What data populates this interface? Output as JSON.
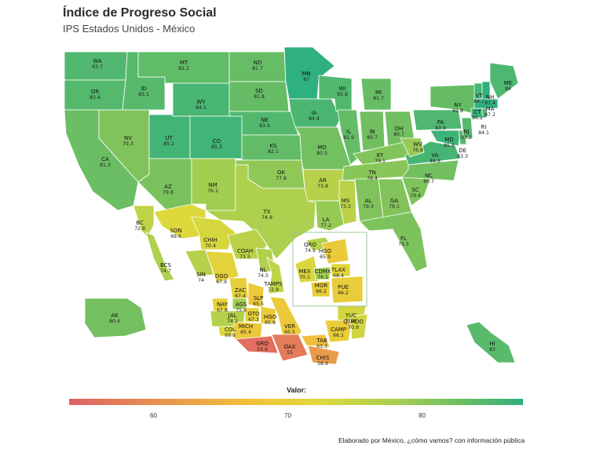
{
  "title": "Índice de Progreso Social",
  "subtitle": "IPS Estados Unidos - México",
  "legend": {
    "label": "Valor:",
    "ticks": [
      "60",
      "70",
      "80"
    ],
    "min": 52,
    "max": 87,
    "colors": [
      "#e06265",
      "#e8924e",
      "#f2c23a",
      "#ded83b",
      "#a9cf4f",
      "#6cbe62",
      "#2fb07f"
    ]
  },
  "footer": "Elaborado por México, ¿cómo vamos? con información pública",
  "regions": [
    {
      "code": "WA",
      "value": "83.7"
    },
    {
      "code": "OR",
      "value": "83.4"
    },
    {
      "code": "CA",
      "value": "81.3"
    },
    {
      "code": "ID",
      "value": "83.1"
    },
    {
      "code": "NV",
      "value": "79.3"
    },
    {
      "code": "MT",
      "value": "82.2"
    },
    {
      "code": "WY",
      "value": "84.5"
    },
    {
      "code": "UT",
      "value": "85.2"
    },
    {
      "code": "AZ",
      "value": "79.8"
    },
    {
      "code": "CO",
      "value": "85.3"
    },
    {
      "code": "NM",
      "value": "76.1"
    },
    {
      "code": "ND",
      "value": "81.7"
    },
    {
      "code": "SD",
      "value": "81.8"
    },
    {
      "code": "NE",
      "value": "83.6"
    },
    {
      "code": "KS",
      "value": "82.1"
    },
    {
      "code": "OK",
      "value": "77.8"
    },
    {
      "code": "TX",
      "value": "74.9"
    },
    {
      "code": "MN",
      "value": "87"
    },
    {
      "code": "IA",
      "value": "84.4"
    },
    {
      "code": "MO",
      "value": "80.5"
    },
    {
      "code": "AR",
      "value": "73.8"
    },
    {
      "code": "LA",
      "value": "77.2"
    },
    {
      "code": "WI",
      "value": "83.8"
    },
    {
      "code": "IL",
      "value": "81.9"
    },
    {
      "code": "MI",
      "value": "81.7"
    },
    {
      "code": "IN",
      "value": "80.7"
    },
    {
      "code": "OH",
      "value": "80.7"
    },
    {
      "code": "KY",
      "value": "79.1"
    },
    {
      "code": "TN",
      "value": "78.4"
    },
    {
      "code": "MS",
      "value": "73.3"
    },
    {
      "code": "AL",
      "value": "79.3"
    },
    {
      "code": "GA",
      "value": "79.1"
    },
    {
      "code": "FL",
      "value": "79.5"
    },
    {
      "code": "SC",
      "value": "79.4"
    },
    {
      "code": "NC",
      "value": "80.7"
    },
    {
      "code": "VA",
      "value": "84.8"
    },
    {
      "code": "WV",
      "value": "76.9"
    },
    {
      "code": "PA",
      "value": "83.9"
    },
    {
      "code": "NY",
      "value": "81.8"
    },
    {
      "code": "MD",
      "value": "85.8"
    },
    {
      "code": "DE",
      "value": "83.3"
    },
    {
      "code": "NJ",
      "value": "83.2"
    },
    {
      "code": "CT",
      "value": "86.2"
    },
    {
      "code": "RI",
      "value": "84.1"
    },
    {
      "code": "MA",
      "value": "87.2"
    },
    {
      "code": "VT",
      "value": "84.7"
    },
    {
      "code": "NH",
      "value": "87.4"
    },
    {
      "code": "ME",
      "value": "84"
    },
    {
      "code": "AK",
      "value": "80.4"
    },
    {
      "code": "HI",
      "value": "83"
    },
    {
      "code": "BC",
      "value": "72.8"
    },
    {
      "code": "BCS",
      "value": "74.7"
    },
    {
      "code": "SON",
      "value": "69.6"
    },
    {
      "code": "CHIH",
      "value": "70.4"
    },
    {
      "code": "COAH",
      "value": "73.5"
    },
    {
      "code": "NL",
      "value": "74.5"
    },
    {
      "code": "TAMPS",
      "value": "72.9"
    },
    {
      "code": "SIN",
      "value": "74"
    },
    {
      "code": "DGO",
      "value": "67.9"
    },
    {
      "code": "ZAC",
      "value": "67.4"
    },
    {
      "code": "SLP",
      "value": "65.5"
    },
    {
      "code": "NAY",
      "value": "67.8"
    },
    {
      "code": "AGS",
      "value": "75.8"
    },
    {
      "code": "JAL",
      "value": "74.2"
    },
    {
      "code": "GTO",
      "value": "67.3"
    },
    {
      "code": "QRO",
      "value": "74.1"
    },
    {
      "code": "HGO",
      "value": "65.9"
    },
    {
      "code": "COL",
      "value": "69.8"
    },
    {
      "code": "MICH",
      "value": "65.4"
    },
    {
      "code": "MEX",
      "value": "70.1"
    },
    {
      "code": "CDMX",
      "value": "76.1"
    },
    {
      "code": "TLAX",
      "value": "68.4"
    },
    {
      "code": "MOR",
      "value": "66.2"
    },
    {
      "code": "PUE",
      "value": "66.2"
    },
    {
      "code": "VER",
      "value": "65.5"
    },
    {
      "code": "GRO",
      "value": "53.6"
    },
    {
      "code": "OAX",
      "value": "55"
    },
    {
      "code": "CHIS",
      "value": "58.9"
    },
    {
      "code": "TAB",
      "value": "63.3"
    },
    {
      "code": "CAMP",
      "value": "66.1"
    },
    {
      "code": "YUC",
      "value": "70.8"
    },
    {
      "code": "Q. ROO",
      "value": "70.9"
    }
  ]
}
